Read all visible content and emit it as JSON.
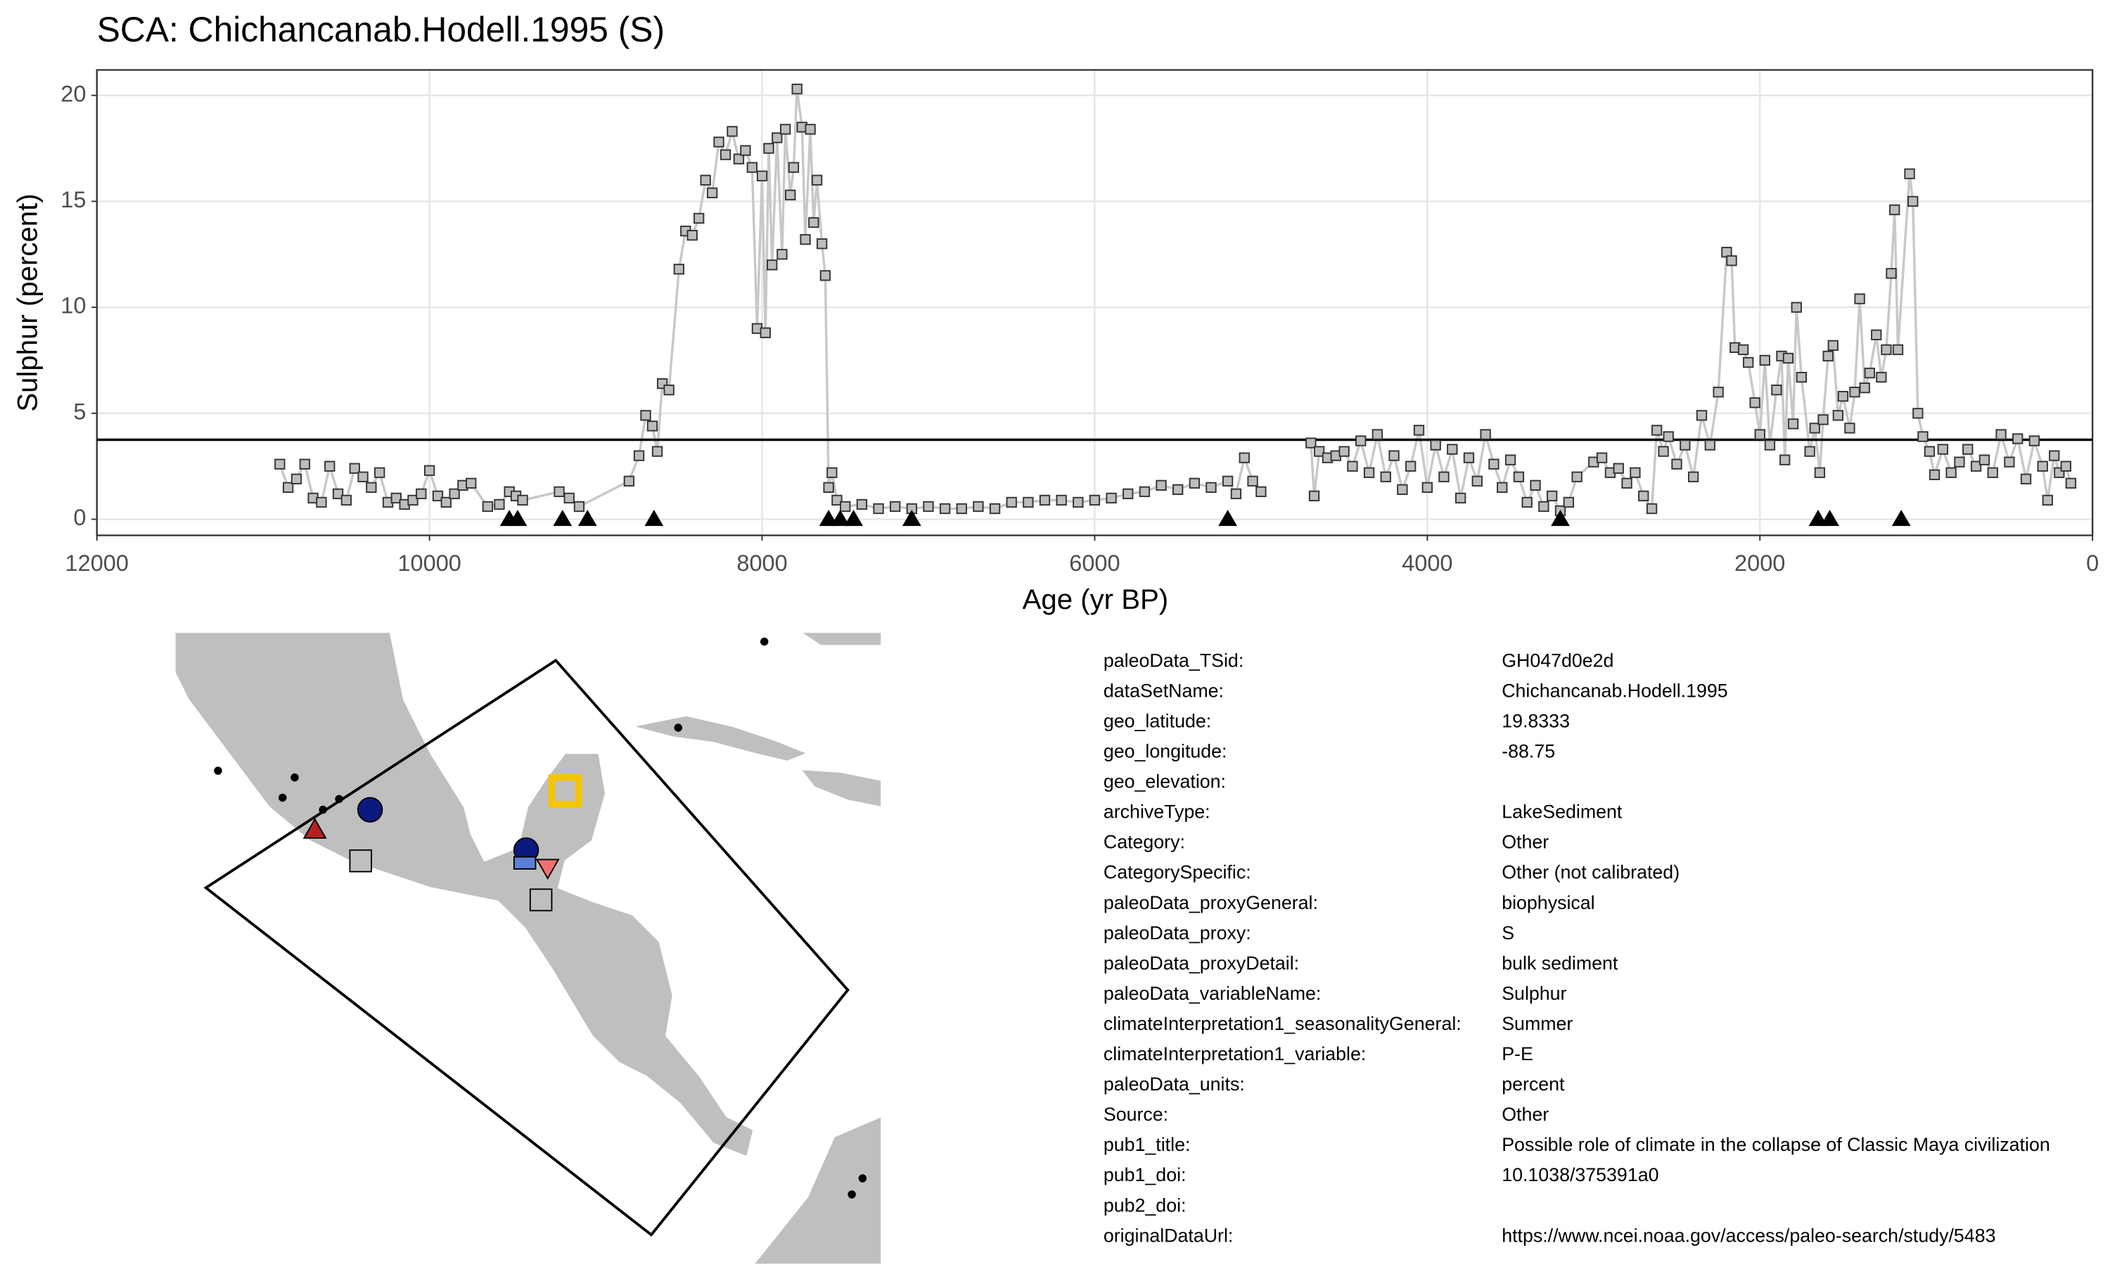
{
  "chart_data": {
    "type": "scatter_line",
    "title": "SCA: Chichancanab.Hodell.1995 (S)",
    "x_label": "Age (yr BP)",
    "y_label": "Sulphur (percent)",
    "xlim": [
      12000,
      0
    ],
    "ylim": [
      -0.76,
      21.2
    ],
    "xticks": [
      12000,
      10000,
      8000,
      6000,
      4000,
      2000,
      0
    ],
    "yticks": [
      0,
      5,
      10,
      15,
      20
    ],
    "grid": true,
    "point_color": "#bdbdbd",
    "line_color": "#c8c8c8",
    "reference_line": 3.75,
    "age_controls": [
      9520,
      9470,
      9200,
      9050,
      8650,
      7600,
      7530,
      7450,
      7100,
      5200,
      3200,
      1650,
      1580,
      1150
    ],
    "x": [
      10900,
      10850,
      10800,
      10750,
      10700,
      10650,
      10600,
      10550,
      10500,
      10450,
      10400,
      10350,
      10300,
      10250,
      10200,
      10150,
      10100,
      10050,
      10000,
      9950,
      9900,
      9850,
      9800,
      9750,
      9650,
      9580,
      9520,
      9480,
      9440,
      9220,
      9160,
      9100,
      8800,
      8740,
      8700,
      8660,
      8630,
      8600,
      8560,
      8500,
      8460,
      8420,
      8380,
      8340,
      8300,
      8260,
      8220,
      8180,
      8140,
      8100,
      8060,
      8030,
      8000,
      7980,
      7960,
      7940,
      7910,
      7880,
      7860,
      7830,
      7810,
      7790,
      7760,
      7740,
      7710,
      7690,
      7670,
      7640,
      7620,
      7600,
      7580,
      7550,
      7500,
      7400,
      7300,
      7200,
      7100,
      7000,
      6900,
      6800,
      6700,
      6600,
      6500,
      6400,
      6300,
      6200,
      6100,
      6000,
      5900,
      5800,
      5700,
      5600,
      5500,
      5400,
      5300,
      5200,
      5150,
      5100,
      5050,
      5000,
      4850,
      4700,
      4680,
      4650,
      4600,
      4550,
      4500,
      4450,
      4400,
      4350,
      4300,
      4250,
      4200,
      4150,
      4100,
      4050,
      4000,
      3950,
      3900,
      3850,
      3800,
      3750,
      3700,
      3650,
      3600,
      3550,
      3500,
      3450,
      3400,
      3350,
      3300,
      3250,
      3200,
      3150,
      3100,
      3000,
      2950,
      2900,
      2850,
      2800,
      2750,
      2700,
      2650,
      2620,
      2580,
      2550,
      2500,
      2450,
      2400,
      2350,
      2300,
      2250,
      2200,
      2170,
      2150,
      2100,
      2070,
      2030,
      2000,
      1970,
      1940,
      1900,
      1870,
      1850,
      1830,
      1800,
      1780,
      1750,
      1700,
      1670,
      1640,
      1620,
      1590,
      1560,
      1530,
      1500,
      1460,
      1430,
      1400,
      1370,
      1340,
      1300,
      1270,
      1240,
      1210,
      1190,
      1170,
      1100,
      1080,
      1050,
      1020,
      980,
      950,
      900,
      850,
      800,
      750,
      700,
      650,
      600,
      550,
      500,
      450,
      400,
      350,
      300,
      270,
      230,
      200,
      160,
      130
    ],
    "values": [
      2.6,
      1.5,
      1.9,
      2.6,
      1.0,
      0.8,
      2.5,
      1.2,
      0.9,
      2.4,
      2.0,
      1.5,
      2.2,
      0.8,
      1.0,
      0.7,
      0.9,
      1.2,
      2.3,
      1.1,
      0.8,
      1.2,
      1.6,
      1.7,
      0.6,
      0.7,
      1.3,
      1.1,
      0.9,
      1.3,
      1.0,
      0.6,
      1.8,
      3.0,
      4.9,
      4.4,
      3.2,
      6.4,
      6.1,
      11.8,
      13.6,
      13.4,
      14.2,
      16.0,
      15.4,
      17.8,
      17.2,
      18.3,
      17.0,
      17.4,
      16.6,
      9.0,
      16.2,
      8.8,
      17.5,
      12.0,
      18.0,
      12.5,
      18.4,
      15.3,
      16.6,
      20.3,
      18.5,
      13.2,
      18.4,
      14.0,
      16.0,
      13.0,
      11.5,
      1.5,
      2.2,
      0.9,
      0.6,
      0.7,
      0.5,
      0.6,
      0.5,
      0.6,
      0.5,
      0.5,
      0.6,
      0.5,
      0.8,
      0.8,
      0.9,
      0.9,
      0.8,
      0.9,
      1.0,
      1.2,
      1.3,
      1.6,
      1.4,
      1.7,
      1.5,
      1.8,
      1.2,
      2.9,
      1.8,
      1.3,
      null,
      3.6,
      1.1,
      3.2,
      2.9,
      3.0,
      3.2,
      2.5,
      3.7,
      2.2,
      4.0,
      2.0,
      3.0,
      1.4,
      2.5,
      4.2,
      1.5,
      3.5,
      2.0,
      3.3,
      1.0,
      2.9,
      1.8,
      4.0,
      2.6,
      1.5,
      2.8,
      2.0,
      0.8,
      1.6,
      0.6,
      1.1,
      0.4,
      0.8,
      2.0,
      2.7,
      2.9,
      2.2,
      2.4,
      1.7,
      2.2,
      1.1,
      0.5,
      4.2,
      3.2,
      3.9,
      2.6,
      3.5,
      2.0,
      4.9,
      3.5,
      6.0,
      12.6,
      12.2,
      8.1,
      8.0,
      7.4,
      5.5,
      4.0,
      7.5,
      3.5,
      6.1,
      7.7,
      2.8,
      7.6,
      4.5,
      10.0,
      6.7,
      3.2,
      4.3,
      2.2,
      4.7,
      7.7,
      8.2,
      4.9,
      5.8,
      4.3,
      6.0,
      10.4,
      6.2,
      6.9,
      8.7,
      6.7,
      8.0,
      11.6,
      14.6,
      8.0,
      16.3,
      15.0,
      5.0,
      3.9,
      3.2,
      2.1,
      3.3,
      2.2,
      2.7,
      3.3,
      2.5,
      2.8,
      2.2,
      4.0,
      2.7,
      3.8,
      1.9,
      3.7,
      2.5,
      0.9,
      3.0,
      2.2,
      2.5,
      1.7
    ]
  },
  "metadata": [
    {
      "key": "paleoData_TSid:",
      "value": "GH047d0e2d"
    },
    {
      "key": "dataSetName:",
      "value": "Chichancanab.Hodell.1995"
    },
    {
      "key": "geo_latitude:",
      "value": "19.8333"
    },
    {
      "key": "geo_longitude:",
      "value": "-88.75"
    },
    {
      "key": "geo_elevation:"
    },
    {
      "key": "archiveType:",
      "value": "LakeSediment"
    },
    {
      "key": "Category:",
      "value": "Other"
    },
    {
      "key": "CategorySpecific:",
      "value": "Other (not calibrated)"
    },
    {
      "key": "paleoData_proxyGeneral:",
      "value": "biophysical"
    },
    {
      "key": "paleoData_proxy:",
      "value": "S"
    },
    {
      "key": "paleoData_proxyDetail:",
      "value": "bulk sediment"
    },
    {
      "key": "paleoData_variableName:",
      "value": "Sulphur"
    },
    {
      "key": "climateInterpretation1_seasonalityGeneral:",
      "value": "Summer"
    },
    {
      "key": "climateInterpretation1_variable:",
      "value": "P-E"
    },
    {
      "key": "paleoData_units:",
      "value": "percent"
    },
    {
      "key": "Source:",
      "value": "Other"
    },
    {
      "key": "pub1_title:",
      "value": "Possible role of climate in the collapse of Classic Maya civilization"
    },
    {
      "key": "pub1_doi:",
      "value": "10.1038/375391a0"
    },
    {
      "key": "pub2_doi:"
    },
    {
      "key": "originalDataUrl:",
      "value": "https://www.ncei.noaa.gov/access/paleo-search/study/5483"
    }
  ]
}
